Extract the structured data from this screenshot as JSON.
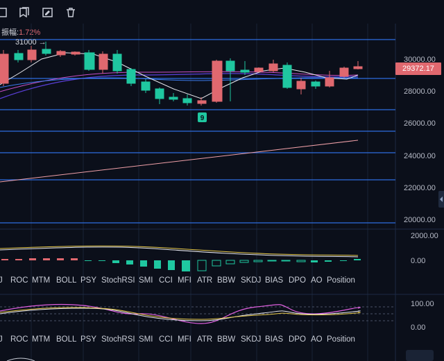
{
  "toolbar": {
    "icons": [
      "square-icon",
      "bookmark-icon",
      "edit-icon",
      "trash-icon"
    ]
  },
  "main_chart": {
    "amplitude_label": "振幅:",
    "amplitude_value": "1.72%",
    "high_marker": "31000 →",
    "count_badge": "9",
    "current_price": "29372.17",
    "price_axis": [
      "30000.00",
      "28000.00",
      "26000.00",
      "24000.00",
      "22000.00",
      "20000.00"
    ]
  },
  "sub_chart_1": {
    "axis": [
      "2000.00",
      "0.00"
    ]
  },
  "sub_chart_2": {
    "axis": [
      "100.00",
      "0.00"
    ]
  },
  "indicator_tabs": [
    "J",
    "ROC",
    "MTM",
    "BOLL",
    "PSY",
    "StochRSI",
    "SMI",
    "CCI",
    "MFI",
    "ATR",
    "BBW",
    "SKDJ",
    "BIAS",
    "DPO",
    "AO",
    "Position"
  ],
  "colors": {
    "up": "#1fc7a0",
    "down": "#e0686f",
    "grid_blue": "#2d6cdf",
    "background": "#0b0f1a"
  }
}
